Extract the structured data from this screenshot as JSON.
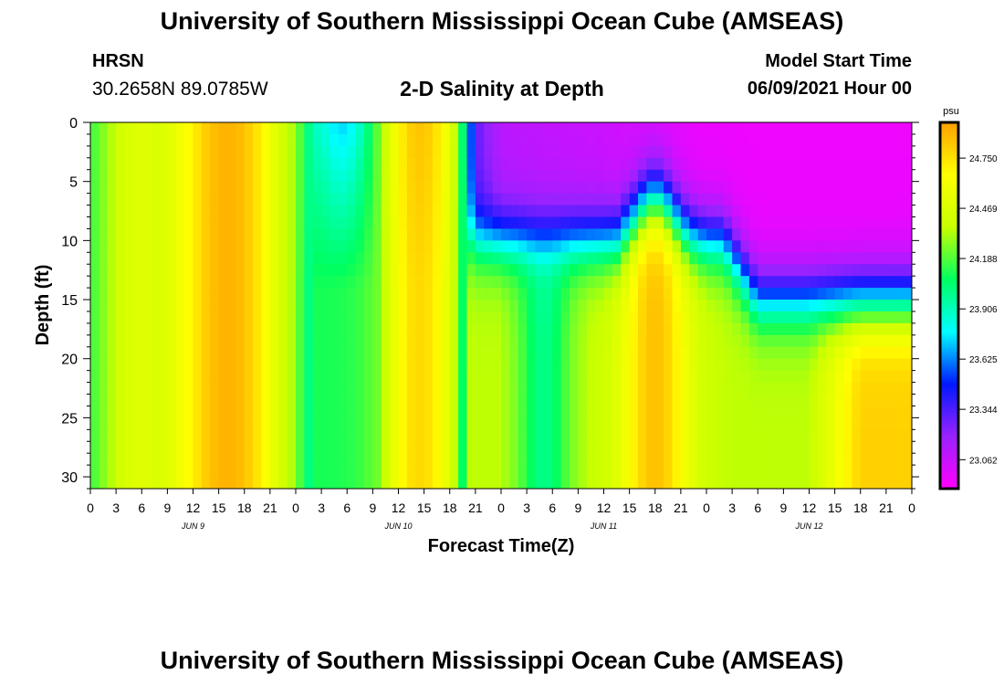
{
  "header": {
    "title": "University of Southern Mississippi Ocean Cube (AMSEAS)",
    "station": "HRSN",
    "coords": "30.2658N  89.0785W",
    "model_start_label": "Model Start Time",
    "model_start": "06/09/2021 Hour 00"
  },
  "footer": {
    "title": "University of Southern Mississippi Ocean Cube (AMSEAS)"
  },
  "chart_data": {
    "type": "heatmap",
    "title": "2-D Salinity at Depth",
    "xlabel": "Forecast Time(Z)",
    "ylabel": "Depth (ft)",
    "x_range_hours": [
      0,
      96
    ],
    "y_range_ft": [
      0,
      31
    ],
    "y_ticks": [
      0,
      5,
      10,
      15,
      20,
      25,
      30
    ],
    "x_tick_labels": [
      "0",
      "3",
      "6",
      "9",
      "12",
      "15",
      "18",
      "21",
      "0",
      "3",
      "6",
      "9",
      "12",
      "15",
      "18",
      "21",
      "0",
      "3",
      "6",
      "9",
      "12",
      "15",
      "18",
      "21",
      "0",
      "3",
      "6",
      "9",
      "12",
      "15",
      "18",
      "21",
      "0"
    ],
    "day_labels": [
      {
        "label": "JUN 9",
        "hour": 12
      },
      {
        "label": "JUN 10",
        "hour": 36
      },
      {
        "label": "JUN 11",
        "hour": 60
      },
      {
        "label": "JUN 12",
        "hour": 84
      }
    ],
    "colorbar": {
      "unit": "psu",
      "ticks": [
        "24.750",
        "24.469",
        "24.188",
        "23.906",
        "23.625",
        "23.344",
        "23.062"
      ],
      "colors": [
        "#ff00ff",
        "#9a22ff",
        "#0018ff",
        "#00ffff",
        "#00ff60",
        "#c8ff00",
        "#ffff00",
        "#ffa000"
      ],
      "range": [
        22.9,
        24.95
      ]
    },
    "surface_profile": [
      {
        "hour": 0,
        "value": 24.15
      },
      {
        "hour": 2,
        "value": 24.3
      },
      {
        "hour": 4,
        "value": 24.45
      },
      {
        "hour": 6,
        "value": 24.5
      },
      {
        "hour": 8,
        "value": 24.45
      },
      {
        "hour": 10,
        "value": 24.55
      },
      {
        "hour": 12,
        "value": 24.7
      },
      {
        "hour": 14,
        "value": 24.85
      },
      {
        "hour": 16,
        "value": 24.9
      },
      {
        "hour": 18,
        "value": 24.85
      },
      {
        "hour": 20,
        "value": 24.7
      },
      {
        "hour": 22,
        "value": 24.45
      },
      {
        "hour": 24,
        "value": 24.3
      },
      {
        "hour": 26,
        "value": 23.9
      },
      {
        "hour": 28,
        "value": 23.8
      },
      {
        "hour": 29,
        "value": 23.7
      },
      {
        "hour": 31,
        "value": 23.8
      },
      {
        "hour": 33,
        "value": 24.1
      },
      {
        "hour": 35,
        "value": 24.5
      },
      {
        "hour": 37,
        "value": 24.8
      },
      {
        "hour": 39,
        "value": 24.85
      },
      {
        "hour": 41,
        "value": 24.7
      },
      {
        "hour": 43,
        "value": 24.3
      },
      {
        "hour": 45,
        "value": 23.3
      },
      {
        "hour": 48,
        "value": 23.1
      },
      {
        "hour": 60,
        "value": 23.05
      },
      {
        "hour": 66,
        "value": 23.0
      },
      {
        "hour": 72,
        "value": 22.95
      },
      {
        "hour": 84,
        "value": 22.95
      },
      {
        "hour": 96,
        "value": 22.95
      }
    ]
  }
}
